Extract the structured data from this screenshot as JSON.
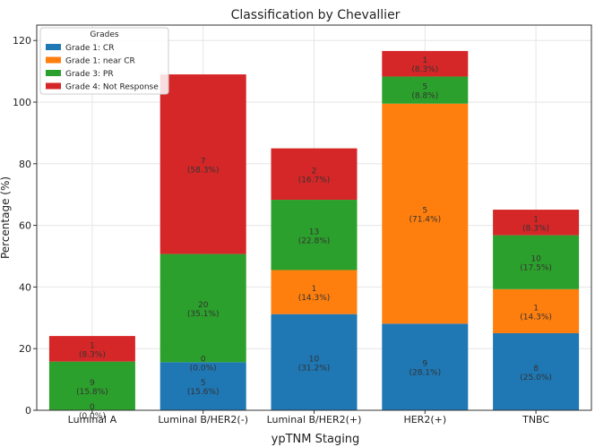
{
  "chart_data": {
    "type": "bar",
    "stacked": true,
    "title": "Classification by Chevallier",
    "xlabel": "ypTNM Staging",
    "ylabel": "Percentage (%)",
    "ylim": [
      0,
      125
    ],
    "yticks": [
      0,
      20,
      40,
      60,
      80,
      100,
      120
    ],
    "grid": true,
    "legend": {
      "title": "Grades",
      "placement": "top-left"
    },
    "categories": [
      "Luminal A",
      "Luminal B/HER2(-)",
      "Luminal B/HER2(+)",
      "HER2(+)",
      "TNBC"
    ],
    "series": [
      {
        "name": "Grade 1: CR",
        "color": "#1f77b4",
        "values": [
          0,
          15.6,
          31.2,
          28.1,
          25.0
        ],
        "labels": [
          [
            "0",
            "(0.0%)"
          ],
          [
            "5",
            "(15.6%)"
          ],
          [
            "10",
            "(31.2%)"
          ],
          [
            "9",
            "(28.1%)"
          ],
          [
            "8",
            "(25.0%)"
          ]
        ]
      },
      {
        "name": "Grade 1: near CR",
        "color": "#ff7f0e",
        "values": [
          0,
          0,
          14.3,
          71.4,
          14.3
        ],
        "labels": [
          null,
          [
            "0",
            "(0.0%)"
          ],
          [
            "1",
            "(14.3%)"
          ],
          [
            "5",
            "(71.4%)"
          ],
          [
            "1",
            "(14.3%)"
          ]
        ]
      },
      {
        "name": "Grade 3: PR",
        "color": "#2ca02c",
        "values": [
          15.8,
          35.1,
          22.8,
          8.8,
          17.5
        ],
        "labels": [
          [
            "9",
            "(15.8%)"
          ],
          [
            "20",
            "(35.1%)"
          ],
          [
            "13",
            "(22.8%)"
          ],
          [
            "5",
            "(8.8%)"
          ],
          [
            "10",
            "(17.5%)"
          ]
        ]
      },
      {
        "name": "Grade 4: Not Response",
        "color": "#d62728",
        "values": [
          8.3,
          58.3,
          16.7,
          8.3,
          8.3
        ],
        "labels": [
          [
            "1",
            "(8.3%)"
          ],
          [
            "7",
            "(58.3%)"
          ],
          [
            "2",
            "(16.7%)"
          ],
          [
            "1",
            "(8.3%)"
          ],
          [
            "1",
            "(8.3%)"
          ]
        ]
      }
    ]
  }
}
